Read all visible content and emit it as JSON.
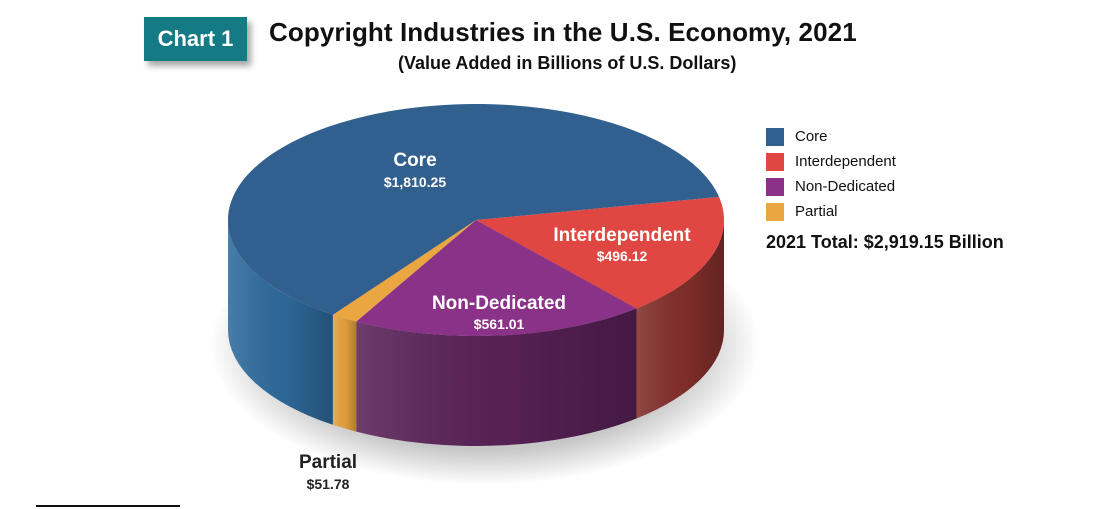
{
  "header": {
    "badge": "Chart 1",
    "title": "Copyright Industries in the U.S. Economy, 2021",
    "subtitle": "(Value Added in Billions of U.S. Dollars)"
  },
  "legend": {
    "items": [
      {
        "label": "Core",
        "color": "#31608f"
      },
      {
        "label": "Interdependent",
        "color": "#e04642"
      },
      {
        "label": "Non-Dedicated",
        "color": "#8a3288"
      },
      {
        "label": "Partial",
        "color": "#eaa640"
      }
    ],
    "total": "2021 Total: $2,919.15 Billion"
  },
  "chart_data": {
    "type": "pie",
    "style": "3d",
    "title": "Copyright Industries in the U.S. Economy, 2021",
    "subtitle": "(Value Added in Billions of U.S. Dollars)",
    "unit": "Billions of U.S. Dollars",
    "total": 2919.15,
    "legend_position": "right",
    "slices": [
      {
        "name": "Core",
        "value": 1810.25,
        "value_label": "$1,810.25",
        "color": "#31608f",
        "side_color": "#2f6c9e"
      },
      {
        "name": "Interdependent",
        "value": 496.12,
        "value_label": "$496.12",
        "color": "#e04642",
        "side_color": "#85302c"
      },
      {
        "name": "Non-Dedicated",
        "value": 561.01,
        "value_label": "$561.01",
        "color": "#8a3288",
        "side_color": "#5a2258"
      },
      {
        "name": "Partial",
        "value": 51.78,
        "value_label": "$51.78",
        "color": "#eaa640",
        "side_color": "#e9a43f"
      }
    ]
  }
}
